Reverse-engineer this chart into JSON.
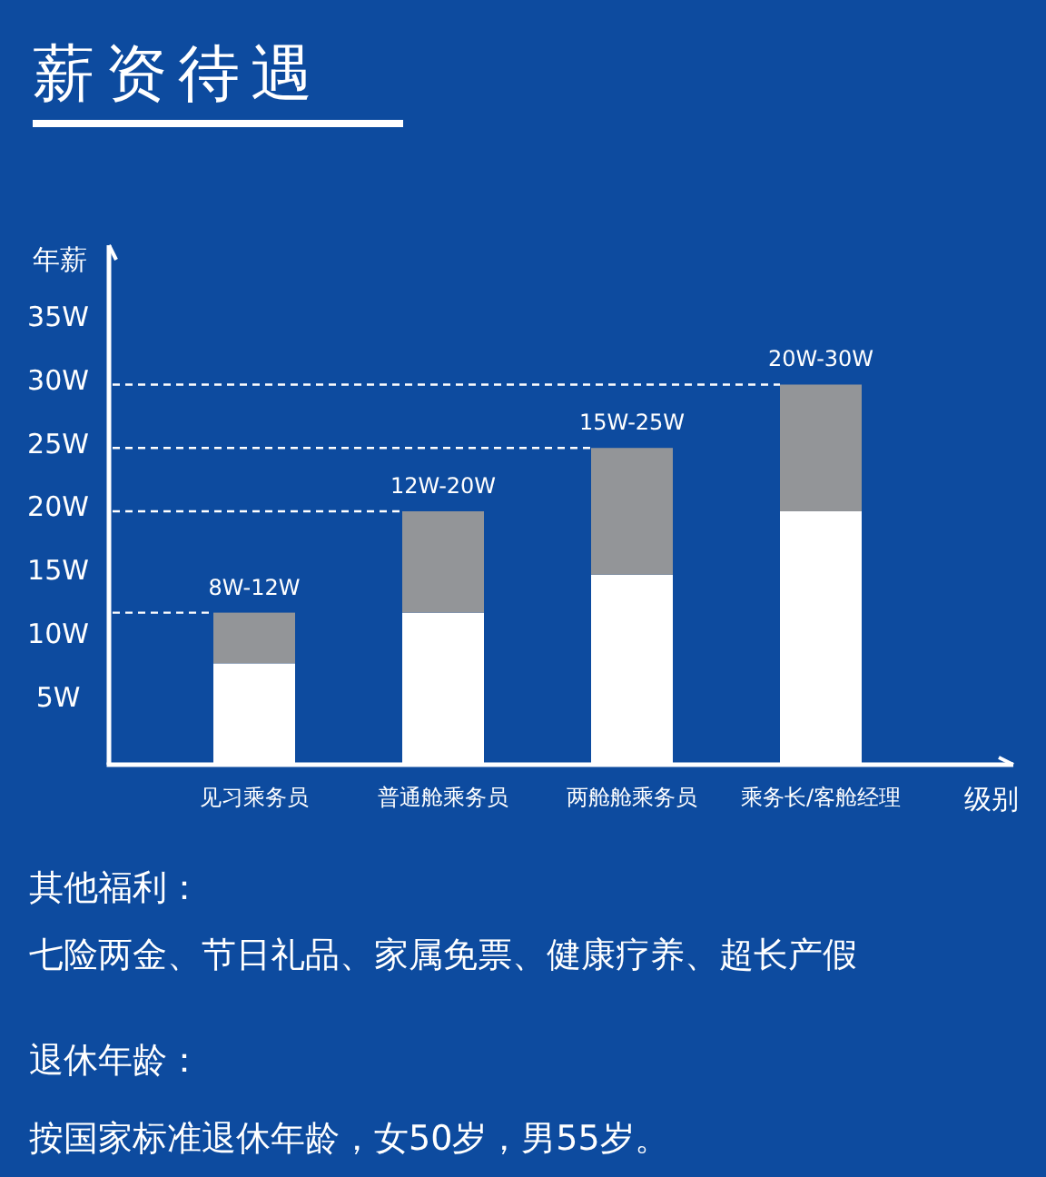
{
  "chart_data": {
    "type": "bar",
    "stacked": true,
    "title": "薪资待遇",
    "ylabel": "年薪",
    "xlabel": "级别",
    "categories": [
      "见习乘务员",
      "普通舱乘务员",
      "两舱舱乘务员",
      "乘务长/客舱经理"
    ],
    "series": [
      {
        "color": "#ffffff",
        "values": [
          8,
          12,
          15,
          20
        ]
      },
      {
        "color": "#939598",
        "values": [
          4,
          8,
          10,
          10
        ]
      }
    ],
    "ylim": [
      0,
      41
    ],
    "yticks": [
      {
        "value": 5,
        "label": "5W"
      },
      {
        "value": 10,
        "label": "10W"
      },
      {
        "value": 15,
        "label": "15W"
      },
      {
        "value": 20,
        "label": "20W"
      },
      {
        "value": 25,
        "label": "25W"
      },
      {
        "value": 30,
        "label": "30W"
      },
      {
        "value": 35,
        "label": "35W"
      }
    ],
    "ref_lines": [
      {
        "axis": "y",
        "value": 12,
        "color": "#ffffff",
        "line_style": "dashed"
      },
      {
        "axis": "y",
        "value": 20,
        "color": "#ffffff",
        "line_style": "dashed"
      },
      {
        "axis": "y",
        "value": 25,
        "color": "#ffffff",
        "line_style": "dashed"
      },
      {
        "axis": "y",
        "value": 30,
        "color": "#ffffff",
        "line_style": "dashed"
      }
    ],
    "annotations": [
      {
        "text": "8W-12W",
        "x": "见习乘务员",
        "y": 12
      },
      {
        "text": "12W-20W",
        "x": "普通舱乘务员",
        "y": 20
      },
      {
        "text": "15W-25W",
        "x": "两舱舱乘务员",
        "y": 25
      },
      {
        "text": "20W-30W",
        "x": "乘务长/客舱经理",
        "y": 30
      },
      "其他福利：",
      "七险两金、节日礼品、家属免票、健康疗养、超长产假",
      "退休年龄：",
      "按国家标准退休年龄，女50岁，男55岁。"
    ],
    "grid": false
  }
}
